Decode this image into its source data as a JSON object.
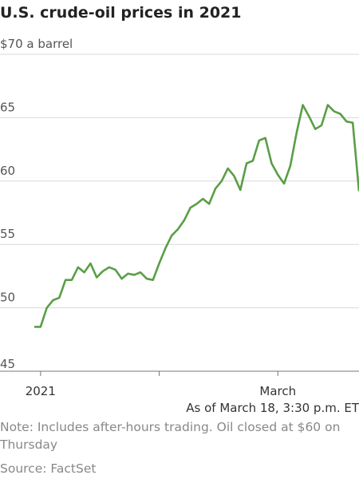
{
  "chart_data": {
    "type": "line",
    "title": "U.S. crude-oil prices in 2021",
    "series": [
      {
        "name": "Crude oil",
        "color": "#5a9e46",
        "values": [
          48.5,
          48.5,
          50.0,
          50.6,
          50.8,
          52.2,
          52.2,
          53.2,
          52.8,
          53.5,
          52.4,
          52.9,
          53.2,
          53.0,
          52.3,
          52.7,
          52.6,
          52.8,
          52.3,
          52.2,
          53.5,
          54.7,
          55.7,
          56.2,
          56.9,
          57.9,
          58.2,
          58.6,
          58.2,
          59.4,
          60.0,
          61.0,
          60.4,
          59.3,
          61.4,
          61.6,
          63.2,
          63.4,
          61.4,
          60.5,
          59.8,
          61.2,
          63.8,
          66.0,
          65.1,
          64.1,
          64.4,
          66.0,
          65.5,
          65.3,
          64.7,
          64.6,
          59.2
        ]
      }
    ],
    "ylim": [
      45,
      70
    ],
    "yticks": [
      45,
      50,
      55,
      60,
      65,
      {
        "value": 70,
        "label": "$70 a barrel"
      }
    ],
    "xlim": [
      0,
      52
    ],
    "xticks": [
      {
        "value": 1,
        "label": "2021"
      },
      {
        "value": 20,
        "label": null
      },
      {
        "value": 39,
        "label": "March"
      }
    ],
    "annotation": "As of March 18, 3:30 p.m. ET",
    "note": "Note: Includes after-hours trading. Oil closed at $60 on Thursday",
    "source": "Source: FactSet",
    "grid": true
  }
}
